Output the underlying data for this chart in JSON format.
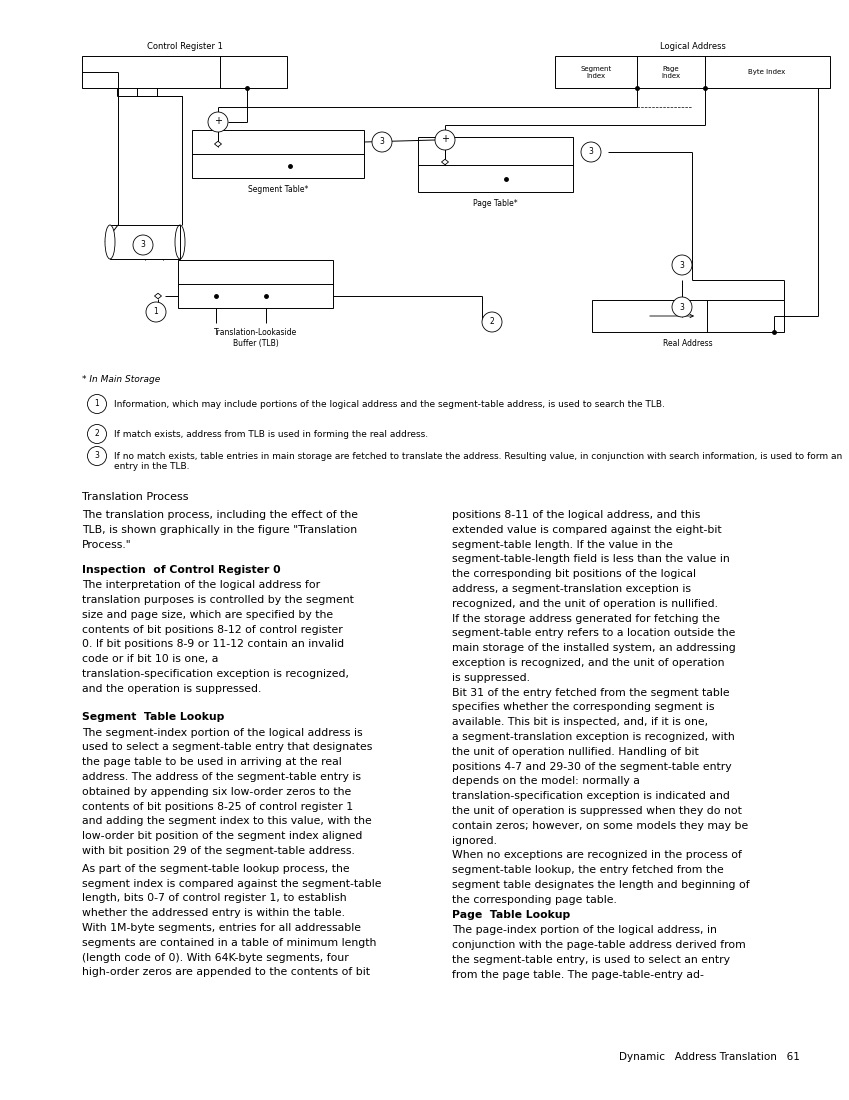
{
  "background_color": "#ffffff",
  "footnote_star": "* In Main Storage",
  "legend_items": [
    {
      "num": "1",
      "text": "Information, which may include portions of the logical address and the segment-table address, is used to search the TLB."
    },
    {
      "num": "2",
      "text": "If match exists, address from TLB is used in forming the real address."
    },
    {
      "num": "3",
      "text": "If no match exists, table entries in main storage are fetched to translate the address. Resulting value, in conjunction with search information, is used to form an entry in the TLB."
    }
  ],
  "section_title": "Translation Process",
  "col1_text": [
    {
      "indent": true,
      "bold": false,
      "text": "The translation process, including the effect of the TLB, is shown graphically in the figure \"Translation Process.\""
    },
    {
      "indent": false,
      "bold": false,
      "text": ""
    },
    {
      "indent": false,
      "bold": true,
      "heading": "Inspection  of Control Register 0",
      "text": "The interpretation of the logical address for translation purposes is controlled by the segment size and page size, which are specified by the contents of bit positions 8-12 of control register 0. If bit positions 8-9 or 11-12 contain an invalid code or if bit 10 is one, a translation-specification exception is recognized, and the operation is suppressed."
    },
    {
      "indent": false,
      "bold": false,
      "text": ""
    },
    {
      "indent": false,
      "bold": true,
      "heading": "Segment  Table Lookup",
      "text": "The segment-index portion of the logical address is used to select a segment-table entry that designates the page table to be used in arriving at the real address. The address of the segment-table entry is obtained by appending six low-order zeros to the contents of bit positions 8-25 of control register 1 and adding the segment index to this value, with the low-order bit position of the segment index aligned with bit position 29 of the segment-table address."
    },
    {
      "indent": true,
      "bold": false,
      "text": "As part of the segment-table lookup process, the segment index is compared against the segment-table length, bits 0-7 of control register 1, to establish whether the addressed entry is within the table. With 1M-byte segments, entries for all addressable segments are contained in a table of minimum length (length code of 0).  With 64K-byte segments, four high-order zeros are appended to the contents of bit"
    }
  ],
  "col2_text": [
    {
      "indent": false,
      "bold": false,
      "text": "positions 8-11 of the logical address, and this extended value is compared against the eight-bit segment-table length. If the value in the segment-table-length field is less than the value in the corresponding bit positions of the logical address, a segment-translation exception is recognized, and the unit of operation is nullified."
    },
    {
      "indent": true,
      "bold": false,
      "text": "If the storage address generated for fetching the segment-table entry refers to a location outside the main storage of the installed system, an addressing exception is recognized, and the unit of operation is suppressed."
    },
    {
      "indent": true,
      "bold": false,
      "text": "Bit 31 of the entry fetched from the segment table specifies whether the corresponding segment is available. This bit is inspected, and, if it is one, a segment-translation exception is recognized, with the unit of operation nullified. Handling of bit positions 4-7 and 29-30 of the segment-table entry depends on the model: normally a translation-specification exception is indicated and the unit of operation is suppressed when they do not contain zeros; however, on some models they may be ignored."
    },
    {
      "indent": true,
      "bold": false,
      "text": "When no exceptions are recognized in the process of segment-table lookup, the entry fetched from the segment table designates the length and beginning of the corresponding page table."
    },
    {
      "indent": false,
      "bold": true,
      "heading": "Page  Table Lookup",
      "text": "The page-index portion of the logical address, in conjunction with the page-table address derived from the segment-table entry, is used to select an entry from the page table. The page-table-entry ad-"
    }
  ],
  "footer_text": "Dynamic   Address Translation   61"
}
